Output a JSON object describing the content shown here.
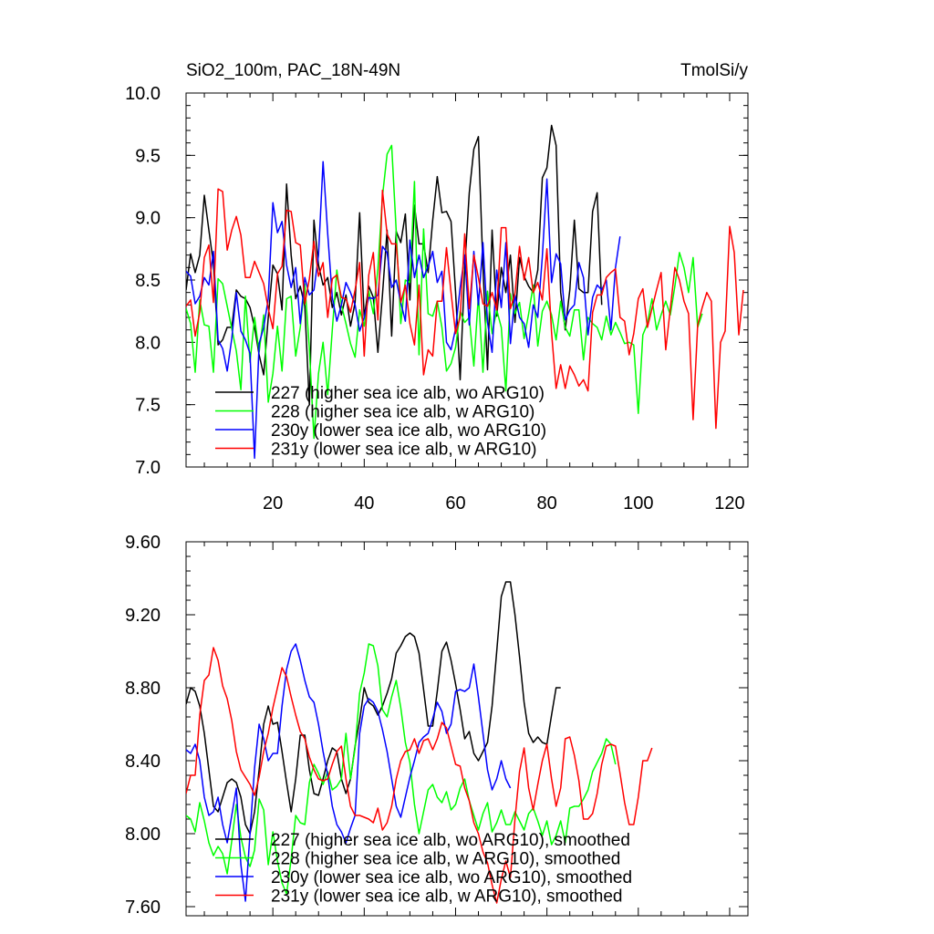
{
  "chart_data": [
    {
      "type": "line",
      "title_left": "SiO2_100m, PAC_18N-49N",
      "title_right": "TmolSi/y",
      "xlabel": "",
      "ylabel": "",
      "xlim": [
        1,
        124
      ],
      "ylim": [
        7.0,
        10.0
      ],
      "xticks": [
        20,
        40,
        60,
        80,
        100,
        120
      ],
      "xtick_labels": [
        "20",
        "40",
        "60",
        "80",
        "100",
        "120"
      ],
      "yticks": [
        7.0,
        7.5,
        8.0,
        8.5,
        9.0,
        9.5,
        10.0
      ],
      "ytick_labels": [
        "7.0",
        "7.5",
        "8.0",
        "8.5",
        "9.0",
        "9.5",
        "10.0"
      ],
      "legend_position": "lower-left",
      "series": [
        {
          "name": "227 (higher sea ice alb, wo ARG10)",
          "color": "#000000",
          "x_start": 1,
          "values": [
            8.42,
            8.71,
            8.56,
            8.7,
            9.18,
            8.9,
            8.63,
            7.98,
            8.02,
            8.12,
            8.12,
            8.42,
            8.37,
            8.35,
            8.28,
            8.12,
            7.9,
            7.74,
            8.2,
            8.62,
            8.55,
            8.26,
            9.27,
            8.7,
            8.35,
            8.45,
            8.29,
            7.5,
            8.98,
            8.62,
            8.46,
            8.52,
            8.28,
            8.4,
            8.22,
            8.38,
            8.13,
            8.32,
            9.04,
            8.2,
            8.45,
            8.36,
            7.92,
            8.38,
            8.9,
            8.05,
            8.89,
            8.8,
            9.03,
            8.34,
            9.1,
            8.79,
            8.79,
            8.56,
            8.98,
            9.33,
            9.04,
            9.05,
            8.97,
            8.4,
            7.7,
            8.6,
            9.2,
            9.55,
            9.65,
            8.6,
            7.78,
            8.9,
            8.21,
            8.6,
            8.4,
            8.7,
            8.16,
            8.68,
            8.53,
            8.45,
            8.4,
            8.58,
            9.32,
            9.4,
            9.74,
            9.58,
            8.4,
            8.1,
            8.42,
            8.98,
            8.43,
            8.4,
            8.4,
            9.05,
            9.2,
            8.3
          ]
        },
        {
          "name": "228 (higher sea ice alb, w ARG10)",
          "color": "#00ff00",
          "x_start": 1,
          "values": [
            8.27,
            8.15,
            7.76,
            8.34,
            8.14,
            8.13,
            7.76,
            8.51,
            8.47,
            8.29,
            8.11,
            7.93,
            7.62,
            8.37,
            7.84,
            8.2,
            7.92,
            8.22,
            7.52,
            7.75,
            8.13,
            7.77,
            8.35,
            8.37,
            7.89,
            8.12,
            8.47,
            7.95,
            7.23,
            7.75,
            8.0,
            7.58,
            8.1,
            8.58,
            8.3,
            8.15,
            7.99,
            7.88,
            8.26,
            8.13,
            8.41,
            8.23,
            8.59,
            9.17,
            9.51,
            9.58,
            8.89,
            8.15,
            8.5,
            8.48,
            9.29,
            7.9,
            8.91,
            8.23,
            8.21,
            8.33,
            8.12,
            7.77,
            7.83,
            7.96,
            8.25,
            8.16,
            8.2,
            7.81,
            8.38,
            7.76,
            8.41,
            8.07,
            8.26,
            8.12,
            7.61,
            8.39,
            8.23,
            8.32,
            8.03,
            8.23,
            8.46,
            7.97,
            8.25,
            8.33,
            8.22,
            8.02,
            8.33,
            8.12,
            8.05,
            8.26,
            8.26,
            7.86,
            8.2,
            8.15,
            8.12,
            8.02,
            8.21,
            8.06,
            8.16,
            8.08,
            7.99,
            8.0,
            7.98,
            7.43,
            8.06,
            8.15,
            8.35,
            8.1,
            8.22,
            8.33,
            8.22,
            8.45,
            8.72,
            8.6,
            8.4,
            8.68,
            8.12,
            8.23
          ]
        },
        {
          "name": "230y (lower sea ice alb, wo ARG10)",
          "color": "#0000ff",
          "x_start": 1,
          "values": [
            8.57,
            8.53,
            8.31,
            8.37,
            8.52,
            8.46,
            8.73,
            8.02,
            7.95,
            7.77,
            8.03,
            8.4,
            8.09,
            8.02,
            7.91,
            7.07,
            7.99,
            8.12,
            8.35,
            9.12,
            8.88,
            8.97,
            8.62,
            8.44,
            8.6,
            8.15,
            8.52,
            8.38,
            8.42,
            8.7,
            9.45,
            8.87,
            8.36,
            8.17,
            8.3,
            8.48,
            8.4,
            8.3,
            8.09,
            8.2,
            8.36,
            8.35,
            8.38,
            8.77,
            8.72,
            8.44,
            8.5,
            8.32,
            8.17,
            8.82,
            8.52,
            8.7,
            8.52,
            8.61,
            8.73,
            8.48,
            8.57,
            8.0,
            7.94,
            8.11,
            8.44,
            8.7,
            8.14,
            8.73,
            8.3,
            8.8,
            8.16,
            7.92,
            8.58,
            8.28,
            8.8,
            7.99,
            8.38,
            8.2,
            8.15,
            7.96,
            8.3,
            8.2,
            8.69,
            9.31,
            8.48,
            8.71,
            8.63,
            8.18,
            8.26,
            8.3,
            8.64,
            8.52,
            8.06,
            8.36,
            8.46,
            8.42,
            8.5,
            8.1,
            8.6,
            8.85
          ]
        },
        {
          "name": "231y (lower sea ice alb, w ARG10)",
          "color": "#ff0000",
          "x_start": 1,
          "values": [
            8.29,
            8.34,
            8.05,
            8.24,
            8.68,
            8.78,
            8.32,
            9.23,
            9.21,
            8.74,
            8.9,
            9.01,
            8.86,
            8.52,
            8.52,
            8.65,
            8.56,
            8.47,
            8.27,
            8.11,
            8.55,
            8.61,
            9.06,
            9.05,
            8.8,
            8.78,
            8.31,
            8.51,
            8.81,
            8.53,
            8.64,
            8.2,
            8.51,
            8.54,
            8.36,
            8.35,
            8.24,
            8.42,
            8.64,
            7.89,
            8.54,
            8.72,
            8.18,
            9.22,
            8.87,
            8.79,
            8.79,
            8.32,
            8.46,
            8.15,
            7.98,
            8.46,
            7.74,
            7.94,
            7.89,
            8.33,
            8.33,
            8.76,
            8.4,
            8.07,
            8.2,
            8.87,
            8.27,
            8.7,
            8.52,
            8.31,
            8.29,
            8.4,
            8.26,
            8.92,
            8.92,
            8.27,
            8.39,
            8.77,
            8.5,
            8.68,
            8.4,
            8.48,
            8.34,
            8.75,
            8.08,
            7.63,
            7.82,
            7.63,
            7.81,
            7.74,
            7.65,
            7.7,
            7.61,
            8.24,
            8.38,
            8.38,
            8.52,
            8.56,
            8.59,
            8.2,
            8.17,
            7.9,
            8.07,
            8.35,
            8.43,
            8.12,
            8.27,
            8.42,
            8.56,
            7.94,
            8.27,
            8.6,
            8.5,
            8.33,
            8.23,
            7.38,
            8.14,
            8.28,
            8.4,
            8.33,
            7.31,
            8.0,
            8.09,
            8.93,
            8.72,
            8.06,
            8.42
          ]
        }
      ]
    },
    {
      "type": "line",
      "xlabel": "",
      "ylabel": "",
      "xlim": [
        1,
        124
      ],
      "ylim": [
        7.55,
        9.6
      ],
      "xticks": [
        20,
        40,
        60,
        80,
        100,
        120
      ],
      "yticks": [
        7.6,
        8.0,
        8.4,
        8.8,
        9.2,
        9.6
      ],
      "ytick_labels": [
        "7.60",
        "8.00",
        "8.40",
        "8.80",
        "9.20",
        "9.60"
      ],
      "legend_position": "lower-left",
      "series": [
        {
          "name": "227 (higher sea ice alb, wo ARG10), smoothed",
          "color": "#000000",
          "x_start": 1,
          "values": [
            8.71,
            8.8,
            8.78,
            8.7,
            8.55,
            8.35,
            8.15,
            8.12,
            8.2,
            8.28,
            8.3,
            8.28,
            8.2,
            8.05,
            8.0,
            8.12,
            8.35,
            8.6,
            8.7,
            8.6,
            8.61,
            8.45,
            8.28,
            8.12,
            8.3,
            8.54,
            8.54,
            8.35,
            8.22,
            8.21,
            8.3,
            8.4,
            8.47,
            8.45,
            8.3,
            8.22,
            8.3,
            8.48,
            8.62,
            8.8,
            8.72,
            8.7,
            8.65,
            8.7,
            8.77,
            8.85,
            8.99,
            9.03,
            9.08,
            9.1,
            9.08,
            8.99,
            8.79,
            8.59,
            8.59,
            8.78,
            9.0,
            9.05,
            8.95,
            8.82,
            8.68,
            8.52,
            8.56,
            8.44,
            8.4,
            8.45,
            8.5,
            8.7,
            9.0,
            9.3,
            9.38,
            9.38,
            9.2,
            8.97,
            8.72,
            8.55,
            8.5,
            8.53,
            8.5,
            8.49,
            8.65,
            8.8,
            8.8
          ]
        },
        {
          "name": "228 (higher sea ice alb, w ARG10), smoothed",
          "color": "#00ff00",
          "x_start": 1,
          "values": [
            8.1,
            8.08,
            8.01,
            8.17,
            8.07,
            7.95,
            7.88,
            7.93,
            7.89,
            7.78,
            7.96,
            8.16,
            7.98,
            7.87,
            7.82,
            7.91,
            8.19,
            8.13,
            7.83,
            8.01,
            7.85,
            7.73,
            7.67,
            7.86,
            8.1,
            8.06,
            8.05,
            8.28,
            8.38,
            8.33,
            8.27,
            8.34,
            8.24,
            8.26,
            8.3,
            8.55,
            8.3,
            8.47,
            8.77,
            8.88,
            9.04,
            9.03,
            8.92,
            8.68,
            8.64,
            8.75,
            8.84,
            8.69,
            8.5,
            8.39,
            8.16,
            8.0,
            8.12,
            8.24,
            8.27,
            8.2,
            8.17,
            8.23,
            8.13,
            8.16,
            8.25,
            8.3,
            8.18,
            8.1,
            8.02,
            8.11,
            8.17,
            8.01,
            8.06,
            8.13,
            8.05,
            8.05,
            8.12,
            8.07,
            8.02,
            8.11,
            8.14,
            8.07,
            7.99,
            8.07,
            7.94,
            7.99,
            8.07,
            7.95,
            8.14,
            8.15,
            8.15,
            8.19,
            8.24,
            8.34,
            8.39,
            8.44,
            8.52,
            8.49,
            8.38
          ]
        },
        {
          "name": "230y (lower sea ice alb, wo ARG10), smoothed",
          "color": "#0000ff",
          "x_start": 1,
          "values": [
            8.46,
            8.44,
            8.49,
            8.4,
            8.2,
            8.1,
            8.12,
            8.2,
            8.05,
            7.95,
            8.1,
            8.25,
            7.83,
            7.63,
            8.0,
            8.36,
            8.6,
            8.52,
            8.4,
            8.44,
            8.44,
            8.7,
            8.9,
            9.0,
            9.04,
            8.95,
            8.84,
            8.75,
            8.72,
            8.6,
            8.45,
            8.32,
            8.15,
            8.05,
            8.01,
            7.95,
            8.03,
            8.1,
            8.55,
            8.7,
            8.74,
            8.72,
            8.67,
            8.57,
            8.45,
            8.3,
            8.15,
            8.09,
            8.2,
            8.31,
            8.4,
            8.5,
            8.53,
            8.55,
            8.63,
            8.72,
            8.67,
            8.55,
            8.6,
            8.78,
            8.79,
            8.78,
            8.8,
            8.93,
            8.75,
            8.55,
            8.35,
            8.24,
            8.3,
            8.4,
            8.3,
            8.25
          ]
        },
        {
          "name": "231y (lower sea ice alb, w ARG10), smoothed",
          "color": "#ff0000",
          "x_start": 1,
          "values": [
            8.22,
            8.32,
            8.32,
            8.65,
            8.84,
            8.87,
            9.02,
            8.95,
            8.81,
            8.74,
            8.62,
            8.45,
            8.35,
            8.31,
            8.27,
            8.21,
            8.31,
            8.45,
            8.55,
            8.69,
            8.8,
            8.91,
            8.86,
            8.75,
            8.65,
            8.56,
            8.52,
            8.42,
            8.35,
            8.3,
            8.29,
            8.3,
            8.38,
            8.45,
            8.48,
            8.3,
            8.15,
            8.1,
            8.1,
            8.09,
            8.08,
            8.06,
            8.14,
            8.02,
            8.06,
            8.15,
            8.3,
            8.4,
            8.45,
            8.46,
            8.52,
            8.44,
            8.51,
            8.52,
            8.46,
            8.52,
            8.61,
            8.58,
            8.48,
            8.38,
            8.37,
            8.25,
            8.18,
            8.06,
            8.0,
            7.9,
            7.84,
            7.72,
            7.62,
            7.75,
            7.85,
            7.76,
            8.08,
            8.34,
            8.47,
            8.25,
            8.13,
            8.27,
            8.4,
            8.49,
            8.3,
            8.15,
            8.25,
            8.52,
            8.53,
            8.43,
            8.29,
            8.08,
            8.08,
            8.11,
            8.22,
            8.38,
            8.48,
            8.49,
            8.48,
            8.33,
            8.17,
            8.05,
            8.05,
            8.2,
            8.4,
            8.4,
            8.47
          ]
        }
      ]
    }
  ]
}
